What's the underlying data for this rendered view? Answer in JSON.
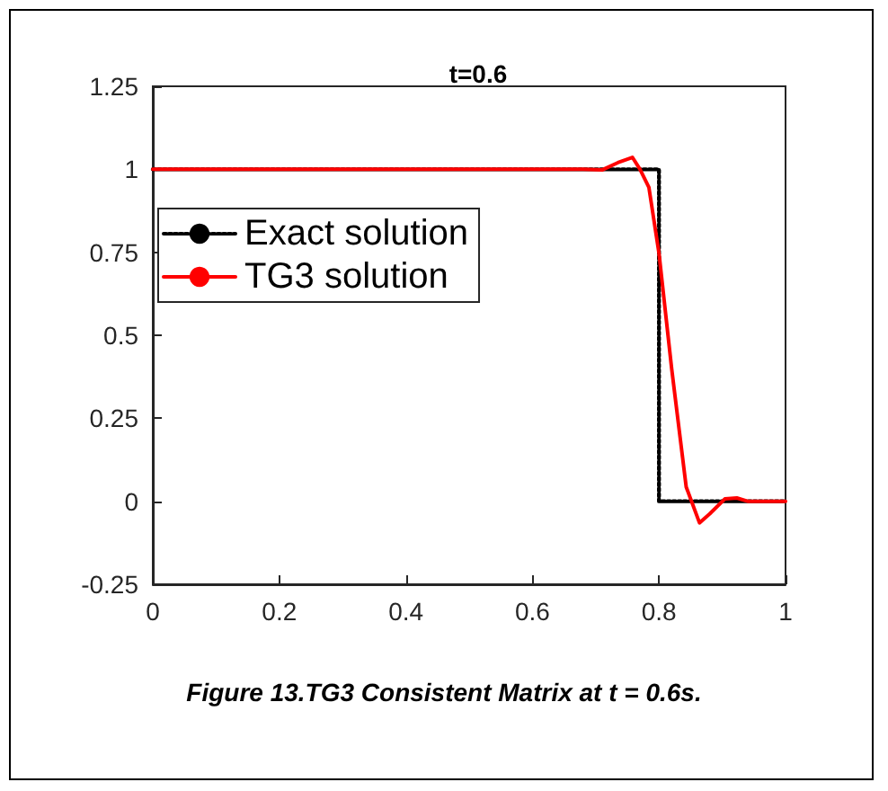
{
  "chart_data": {
    "type": "line",
    "title": "t=0.6",
    "xlim": [
      0,
      1
    ],
    "xticks": [
      0,
      0.2,
      0.4,
      0.6,
      0.8,
      1
    ],
    "ylim": [
      -0.25,
      1.25
    ],
    "yticks": [
      -0.25,
      0,
      0.25,
      0.5,
      0.75,
      1,
      1.25
    ],
    "grid": false,
    "legend": "top left",
    "marker": "none",
    "series": [
      {
        "name": "Exact solution",
        "color": "#000000",
        "line_style": "dotted",
        "x": [
          0,
          0.8,
          0.8,
          1
        ],
        "values": [
          1,
          1,
          0,
          0
        ]
      },
      {
        "name": "TG3 solution",
        "color": "#ff0000",
        "line_style": "solid",
        "x": [
          0,
          0.68,
          0.71,
          0.735,
          0.758,
          0.77,
          0.784,
          0.8,
          0.82,
          0.843,
          0.864,
          0.88,
          0.904,
          0.923,
          0.94,
          1
        ],
        "values": [
          1,
          1,
          0.998,
          1.02,
          1.036,
          1.0,
          0.946,
          0.747,
          0.4,
          0.043,
          -0.065,
          -0.038,
          0.007,
          0.01,
          0,
          0
        ]
      }
    ],
    "annotations": [
      "Figure 13.TG3 Consistent Matrix at t = 0.6s."
    ]
  }
}
